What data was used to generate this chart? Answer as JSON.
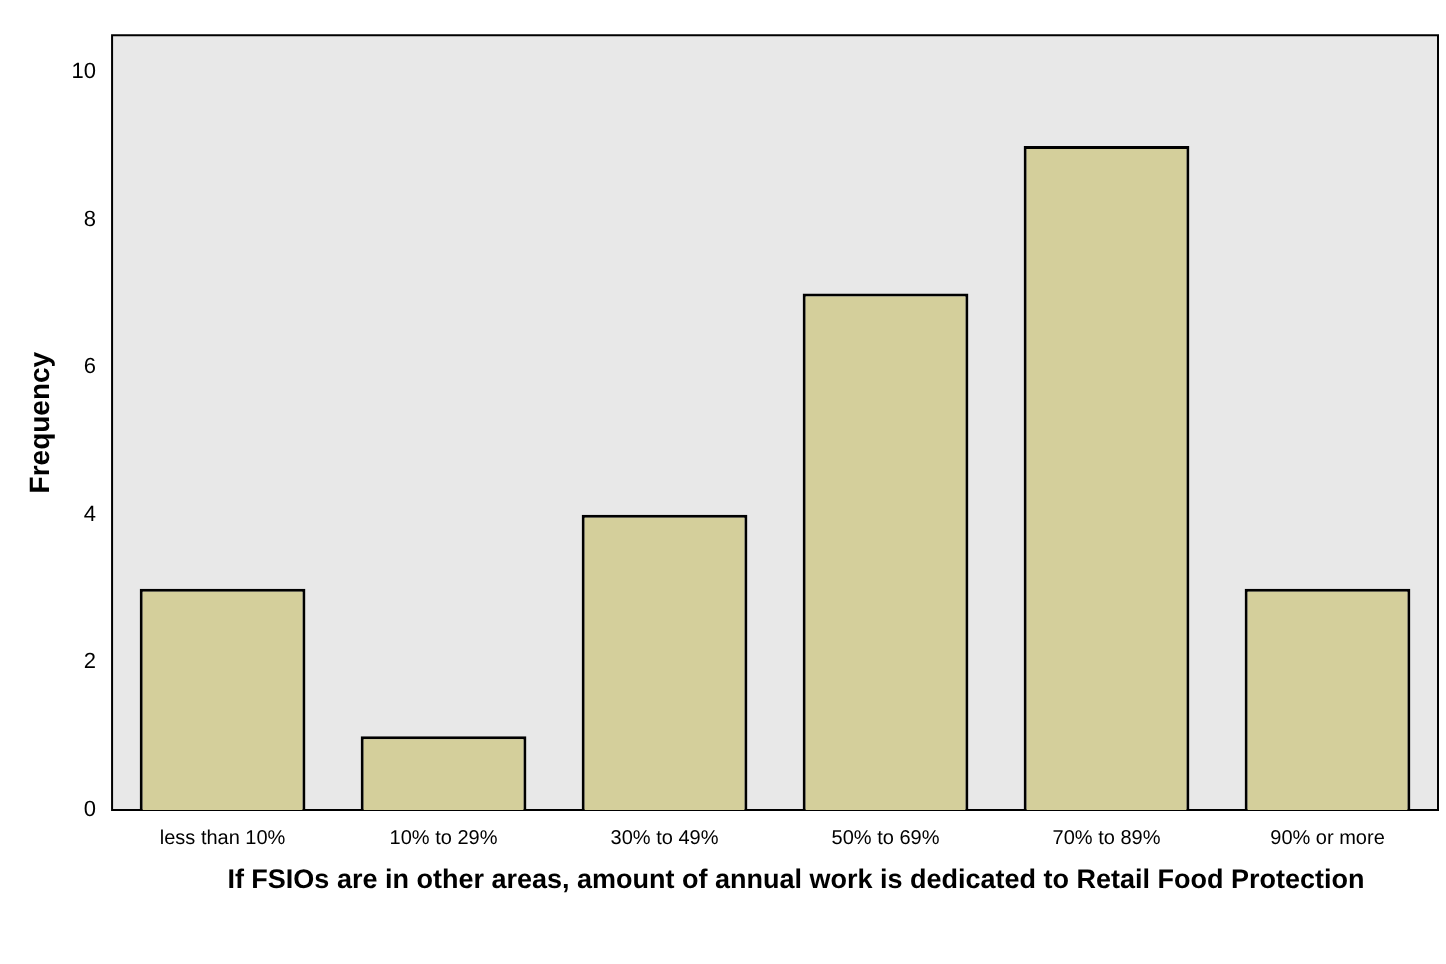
{
  "chart_data": {
    "type": "bar",
    "categories": [
      "less than 10%",
      "10% to 29%",
      "30% to 49%",
      "50% to 69%",
      "70% to 89%",
      "90% or more"
    ],
    "values": [
      3,
      1,
      4,
      7,
      9,
      3
    ],
    "color": "#d4cf9b",
    "xlabel": "If FSIOs are in other areas, amount of annual work is dedicated to Retail Food Protection",
    "ylabel": "Frequency",
    "ylim": [
      0,
      10.5
    ],
    "yticks": [
      0,
      2,
      4,
      6,
      8,
      10
    ],
    "grid": false,
    "legend": false
  }
}
